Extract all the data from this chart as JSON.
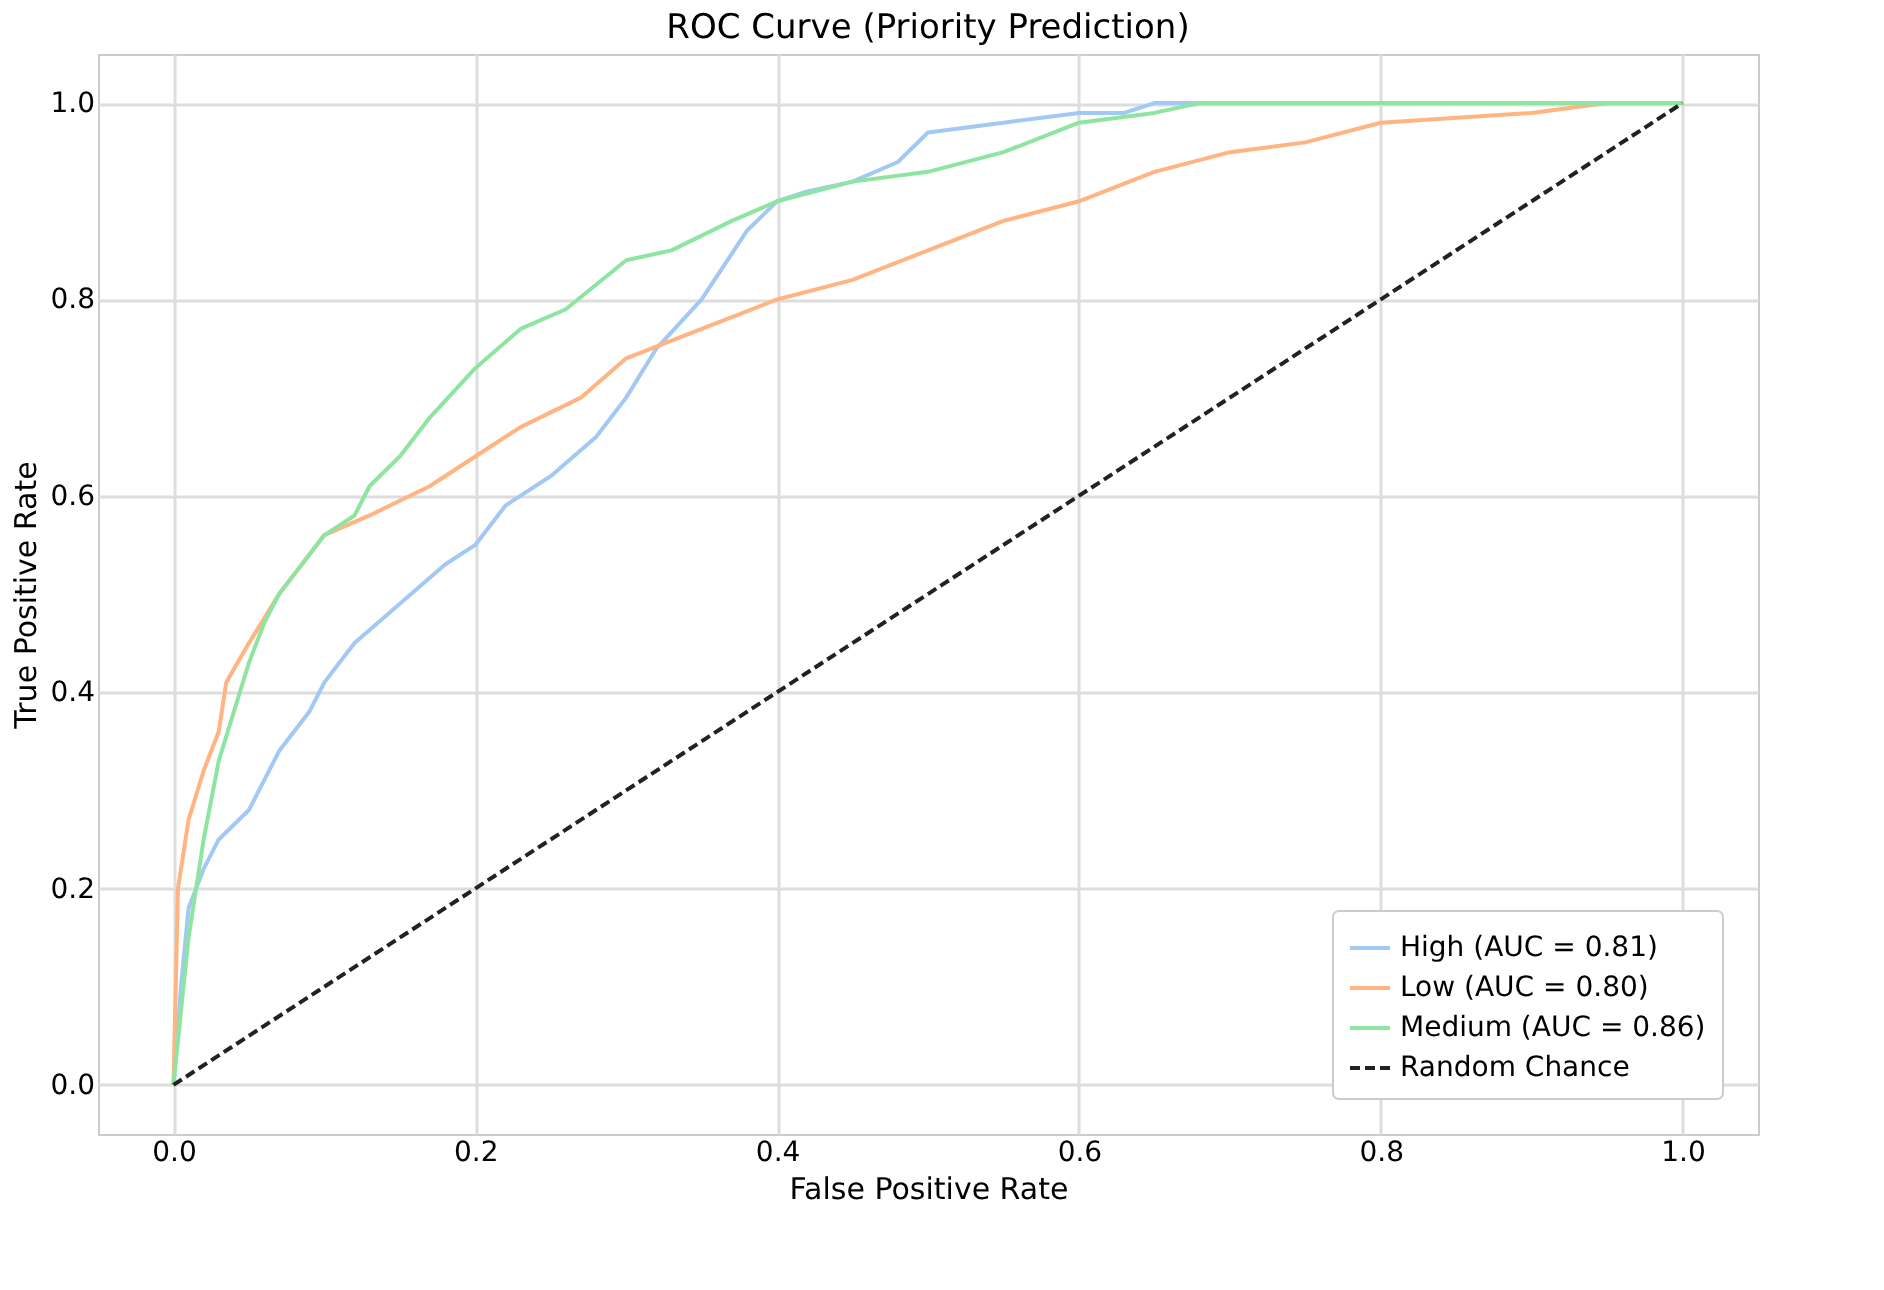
{
  "chart_data": {
    "type": "line",
    "title": "ROC Curve (Priority Prediction)",
    "xlabel": "False Positive Rate",
    "ylabel": "True Positive Rate",
    "xlim": [
      -0.05,
      1.05
    ],
    "ylim": [
      -0.05,
      1.05
    ],
    "xticks": [
      {
        "value": 0,
        "label": "0.0"
      },
      0.2,
      0.4,
      0.6,
      0.8,
      {
        "value": 1,
        "label": "1.0"
      }
    ],
    "yticks": [
      {
        "value": 0,
        "label": "0.0"
      },
      0.2,
      0.4,
      0.6,
      0.8,
      {
        "value": 1,
        "label": "1.0"
      }
    ],
    "grid": true,
    "legend": "bottom right",
    "marker": "none",
    "series": [
      {
        "name": "High (AUC = 0.81)",
        "color": "#a1c9f4",
        "line_style": "solid",
        "x": [
          0,
          0.005,
          0.01,
          0.02,
          0.03,
          0.05,
          0.07,
          0.09,
          0.1,
          0.12,
          0.15,
          0.18,
          0.2,
          0.22,
          0.25,
          0.28,
          0.3,
          0.32,
          0.35,
          0.38,
          0.4,
          0.42,
          0.45,
          0.48,
          0.5,
          0.55,
          0.6,
          0.63,
          0.65,
          1
        ],
        "values": [
          0,
          0.1,
          0.18,
          0.22,
          0.25,
          0.28,
          0.34,
          0.38,
          0.41,
          0.45,
          0.49,
          0.53,
          0.55,
          0.59,
          0.62,
          0.66,
          0.7,
          0.75,
          0.8,
          0.87,
          0.9,
          0.91,
          0.92,
          0.94,
          0.97,
          0.98,
          0.99,
          0.99,
          1.0,
          1.0
        ]
      },
      {
        "name": "Low (AUC = 0.80)",
        "color": "#ffb482",
        "line_style": "solid",
        "x": [
          0,
          0.003,
          0.01,
          0.02,
          0.03,
          0.035,
          0.05,
          0.07,
          0.09,
          0.1,
          0.13,
          0.17,
          0.2,
          0.23,
          0.27,
          0.3,
          0.35,
          0.4,
          0.45,
          0.5,
          0.55,
          0.6,
          0.65,
          0.7,
          0.75,
          0.8,
          0.9,
          0.95,
          1
        ],
        "values": [
          0,
          0.2,
          0.27,
          0.32,
          0.36,
          0.41,
          0.45,
          0.5,
          0.54,
          0.56,
          0.58,
          0.61,
          0.64,
          0.67,
          0.7,
          0.74,
          0.77,
          0.8,
          0.82,
          0.85,
          0.88,
          0.9,
          0.93,
          0.95,
          0.96,
          0.98,
          0.99,
          1.0,
          1.0
        ]
      },
      {
        "name": "Medium (AUC = 0.86)",
        "color": "#8de5a1",
        "line_style": "solid",
        "x": [
          0,
          0.01,
          0.02,
          0.03,
          0.04,
          0.05,
          0.06,
          0.07,
          0.08,
          0.1,
          0.12,
          0.13,
          0.15,
          0.17,
          0.2,
          0.23,
          0.26,
          0.3,
          0.33,
          0.37,
          0.4,
          0.45,
          0.5,
          0.55,
          0.6,
          0.65,
          0.68,
          1
        ],
        "values": [
          0,
          0.15,
          0.25,
          0.33,
          0.38,
          0.43,
          0.47,
          0.5,
          0.52,
          0.56,
          0.58,
          0.61,
          0.64,
          0.68,
          0.73,
          0.77,
          0.79,
          0.84,
          0.85,
          0.88,
          0.9,
          0.92,
          0.93,
          0.95,
          0.98,
          0.99,
          1.0,
          1.0
        ]
      },
      {
        "name": "Random Chance",
        "color": "#222222",
        "line_style": "dashed",
        "x": [
          0,
          1
        ],
        "values": [
          0,
          1
        ]
      }
    ]
  }
}
